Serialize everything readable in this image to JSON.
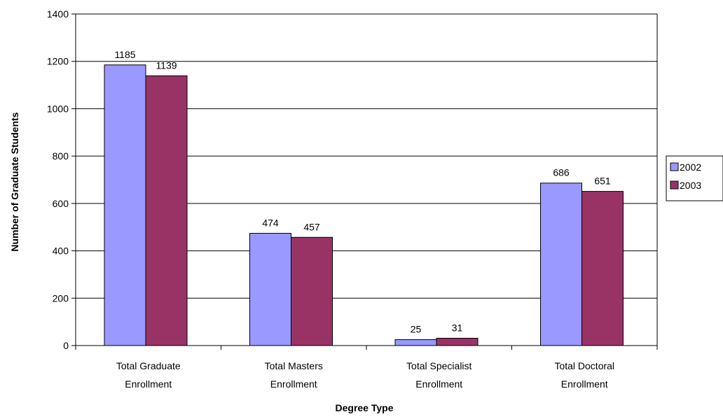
{
  "chart_data": {
    "type": "bar",
    "title": "",
    "xlabel": "Degree Type",
    "ylabel": "Number of Graduate Students",
    "ylim": [
      0,
      1400
    ],
    "yticks": [
      0,
      200,
      400,
      600,
      800,
      1000,
      1200,
      1400
    ],
    "grid": true,
    "legend_position": "right",
    "categories": [
      [
        "Total Graduate",
        "Enrollment"
      ],
      [
        "Total Masters",
        "Enrollment"
      ],
      [
        "Total Specialist",
        "Enrollment"
      ],
      [
        "Total Doctoral",
        "Enrollment"
      ]
    ],
    "series": [
      {
        "name": "2002",
        "color": "#9999ff",
        "values": [
          1185,
          474,
          25,
          686
        ]
      },
      {
        "name": "2003",
        "color": "#993366",
        "values": [
          1139,
          457,
          31,
          651
        ]
      }
    ]
  }
}
